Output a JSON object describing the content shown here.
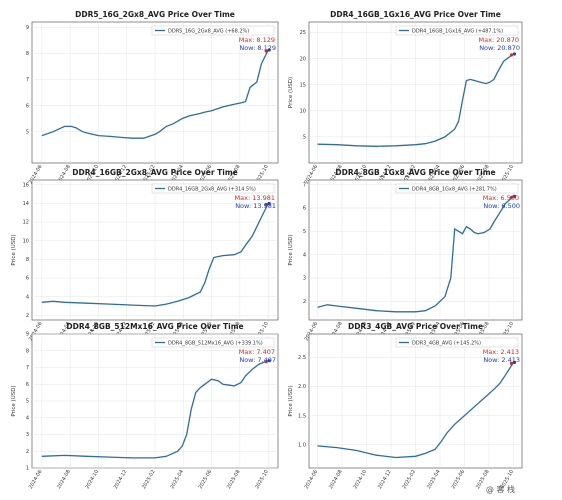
{
  "watermark": "@ 客 栈",
  "colors": {
    "line": "#2a6f9e",
    "max_marker": "#d62728",
    "now_marker": "#1f3fbf",
    "grid": "#dddddd"
  },
  "chart_data": [
    {
      "type": "line",
      "title": "DDR5_16G_2Gx8_AVG Price Over Time",
      "legend": "DDR5_16G_2Gx8_AVG (+68.2%)",
      "legend_position": "top-right",
      "ylabel": "",
      "grid": true,
      "ylim": [
        3.8,
        9.2
      ],
      "yticks": [
        "9",
        "8",
        "7",
        "6",
        "5"
      ],
      "max_label": "Max: 8.129",
      "now_label": "Now: 8.129",
      "x": [
        0,
        0.05,
        0.1,
        0.13,
        0.15,
        0.18,
        0.2,
        0.25,
        0.3,
        0.35,
        0.4,
        0.45,
        0.5,
        0.52,
        0.55,
        0.58,
        0.6,
        0.62,
        0.65,
        0.7,
        0.72,
        0.75,
        0.8,
        0.85,
        0.88,
        0.9,
        0.92,
        0.95,
        0.97,
        1.0
      ],
      "values": [
        4.85,
        5.0,
        5.2,
        5.2,
        5.15,
        5.0,
        4.95,
        4.85,
        4.82,
        4.78,
        4.75,
        4.75,
        4.9,
        5.0,
        5.2,
        5.3,
        5.4,
        5.5,
        5.6,
        5.7,
        5.75,
        5.8,
        5.95,
        6.05,
        6.1,
        6.15,
        6.7,
        6.9,
        7.6,
        8.129
      ]
    },
    {
      "type": "line",
      "title": "DDR4_16GB_1Gx16_AVG Price Over Time",
      "legend": "DDR4_16GB_1Gx16_AVG (+487.1%)",
      "legend_position": "top-right",
      "ylabel": "Price (USD)",
      "grid": true,
      "ylim": [
        0,
        27
      ],
      "yticks": [
        "25",
        "20",
        "15",
        "10",
        "5"
      ],
      "max_label": "Max: 20.870",
      "now_label": "Now: 20.870",
      "x": [
        0,
        0.1,
        0.2,
        0.3,
        0.4,
        0.5,
        0.55,
        0.6,
        0.65,
        0.7,
        0.72,
        0.74,
        0.76,
        0.78,
        0.8,
        0.83,
        0.86,
        0.88,
        0.9,
        0.92,
        0.95,
        1.0
      ],
      "values": [
        3.6,
        3.5,
        3.3,
        3.2,
        3.3,
        3.5,
        3.7,
        4.2,
        5.0,
        6.5,
        8.0,
        12.0,
        15.8,
        16.0,
        15.8,
        15.5,
        15.2,
        15.5,
        16.0,
        17.5,
        19.5,
        20.87
      ]
    },
    {
      "type": "line",
      "title": "DDR4_16GB_2Gx8_AVG Price Over Time",
      "legend": "DDR4_16GB_2Gx8_AVG (+314.5%)",
      "legend_position": "top-right",
      "ylabel": "Price (USD)",
      "grid": true,
      "ylim": [
        1.5,
        16.5
      ],
      "yticks": [
        "16",
        "14",
        "12",
        "10",
        "8",
        "6",
        "4",
        "2"
      ],
      "max_label": "Max: 13.981",
      "now_label": "Now: 13.981",
      "x": [
        0,
        0.05,
        0.1,
        0.2,
        0.3,
        0.4,
        0.5,
        0.55,
        0.6,
        0.65,
        0.7,
        0.72,
        0.74,
        0.76,
        0.78,
        0.8,
        0.85,
        0.88,
        0.9,
        0.93,
        0.96,
        1.0
      ],
      "values": [
        3.4,
        3.5,
        3.4,
        3.3,
        3.2,
        3.1,
        3.0,
        3.2,
        3.5,
        3.9,
        4.5,
        5.5,
        7.0,
        8.2,
        8.3,
        8.4,
        8.5,
        8.8,
        9.5,
        10.5,
        12.0,
        13.981
      ]
    },
    {
      "type": "line",
      "title": "DDR4_8GB_1Gx8_AVG Price Over Time",
      "legend": "DDR4_8GB_1Gx8_AVG (+281.7%)",
      "legend_position": "top-right",
      "ylabel": "Price (USD)",
      "grid": true,
      "ylim": [
        1.2,
        7.2
      ],
      "yticks": [
        "7",
        "6",
        "5",
        "4",
        "3",
        "2"
      ],
      "max_label": "Max: 6.500",
      "now_label": "Now: 6.500",
      "x": [
        0,
        0.05,
        0.1,
        0.2,
        0.3,
        0.4,
        0.5,
        0.55,
        0.6,
        0.65,
        0.68,
        0.7,
        0.72,
        0.74,
        0.76,
        0.78,
        0.8,
        0.82,
        0.85,
        0.88,
        0.9,
        0.93,
        0.96,
        1.0
      ],
      "values": [
        1.75,
        1.85,
        1.8,
        1.7,
        1.6,
        1.55,
        1.55,
        1.6,
        1.8,
        2.2,
        3.0,
        5.1,
        5.0,
        4.9,
        5.2,
        5.1,
        4.95,
        4.9,
        4.95,
        5.1,
        5.4,
        5.8,
        6.2,
        6.5
      ]
    },
    {
      "type": "line",
      "title": "DDR4_8GB_512Mx16_AVG Price Over Time",
      "legend": "DDR4_8GB_512Mx16_AVG (+339.1%)",
      "legend_position": "top-right",
      "ylabel": "Price (USD)",
      "grid": true,
      "ylim": [
        1,
        9
      ],
      "yticks": [
        "9",
        "8",
        "7",
        "6",
        "5",
        "4",
        "3",
        "2",
        "1"
      ],
      "max_label": "Max: 7.407",
      "now_label": "Now: 7.407",
      "x": [
        0,
        0.1,
        0.2,
        0.3,
        0.4,
        0.5,
        0.55,
        0.6,
        0.62,
        0.64,
        0.66,
        0.68,
        0.7,
        0.72,
        0.75,
        0.78,
        0.8,
        0.85,
        0.88,
        0.9,
        0.93,
        0.96,
        1.0
      ],
      "values": [
        1.7,
        1.75,
        1.7,
        1.65,
        1.6,
        1.6,
        1.7,
        2.0,
        2.3,
        3.0,
        4.5,
        5.5,
        5.8,
        6.0,
        6.3,
        6.2,
        6.0,
        5.9,
        6.1,
        6.5,
        6.9,
        7.2,
        7.407
      ]
    },
    {
      "type": "line",
      "title": "DDR3_4GB_AVG Price Over Time",
      "legend": "DDR3_4GB_AVG (+145.2%)",
      "legend_position": "top-right",
      "ylabel": "Price (USD)",
      "grid": true,
      "ylim": [
        0.6,
        2.9
      ],
      "yticks": [
        "2.5",
        "2.0",
        "1.5",
        "1.0"
      ],
      "max_label": "Max: 2.413",
      "now_label": "Now: 2.413",
      "x": [
        0,
        0.1,
        0.2,
        0.3,
        0.4,
        0.5,
        0.55,
        0.6,
        0.63,
        0.66,
        0.7,
        0.75,
        0.8,
        0.85,
        0.9,
        0.93,
        0.96,
        1.0
      ],
      "values": [
        0.98,
        0.95,
        0.9,
        0.82,
        0.78,
        0.8,
        0.85,
        0.92,
        1.05,
        1.2,
        1.35,
        1.5,
        1.65,
        1.8,
        1.95,
        2.05,
        2.2,
        2.413
      ]
    }
  ],
  "xticks": [
    "2024-06",
    "2024-08",
    "2024-10",
    "2024-12",
    "2025-02",
    "2025-04",
    "2025-06",
    "2025-08",
    "2025-10"
  ]
}
